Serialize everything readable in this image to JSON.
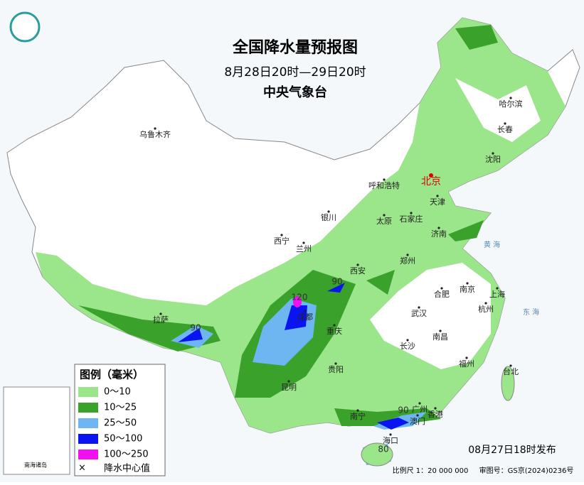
{
  "header": {
    "title": "全国降水量预报图",
    "period": "8月28日20时—29日20时",
    "agency": "中央气象台"
  },
  "cities": [
    "乌鲁木齐",
    "呼和浩特",
    "北京",
    "天津",
    "哈尔滨",
    "长春",
    "沈阳",
    "银川",
    "太原",
    "石家庄",
    "济南",
    "西宁",
    "兰州",
    "西安",
    "郑州",
    "合肥",
    "南京",
    "上海",
    "拉萨",
    "成都",
    "重庆",
    "武汉",
    "杭州",
    "南昌",
    "长沙",
    "福州",
    "台北",
    "贵阳",
    "昆明",
    "南宁",
    "广州",
    "香港",
    "澳门",
    "海口"
  ],
  "seas": [
    "黄 海",
    "东 海"
  ],
  "rain_centers": [
    120,
    90,
    90,
    90,
    80
  ],
  "legend": {
    "title": "图例（毫米）",
    "items": [
      {
        "label": "0～10",
        "color": "#9be58a"
      },
      {
        "label": "10～25",
        "color": "#3aa12a"
      },
      {
        "label": "25～50",
        "color": "#6db6f2"
      },
      {
        "label": "50～100",
        "color": "#0a14f0"
      },
      {
        "label": "100～250",
        "color": "#f010f0"
      }
    ],
    "center": "降水中心值"
  },
  "inset": {
    "label": "南海诸岛"
  },
  "footer": {
    "issued": "08月27日18时发布",
    "scale": "比例尺 1：20 000 000",
    "approval": "审图号：GS京(2024)0236号"
  }
}
